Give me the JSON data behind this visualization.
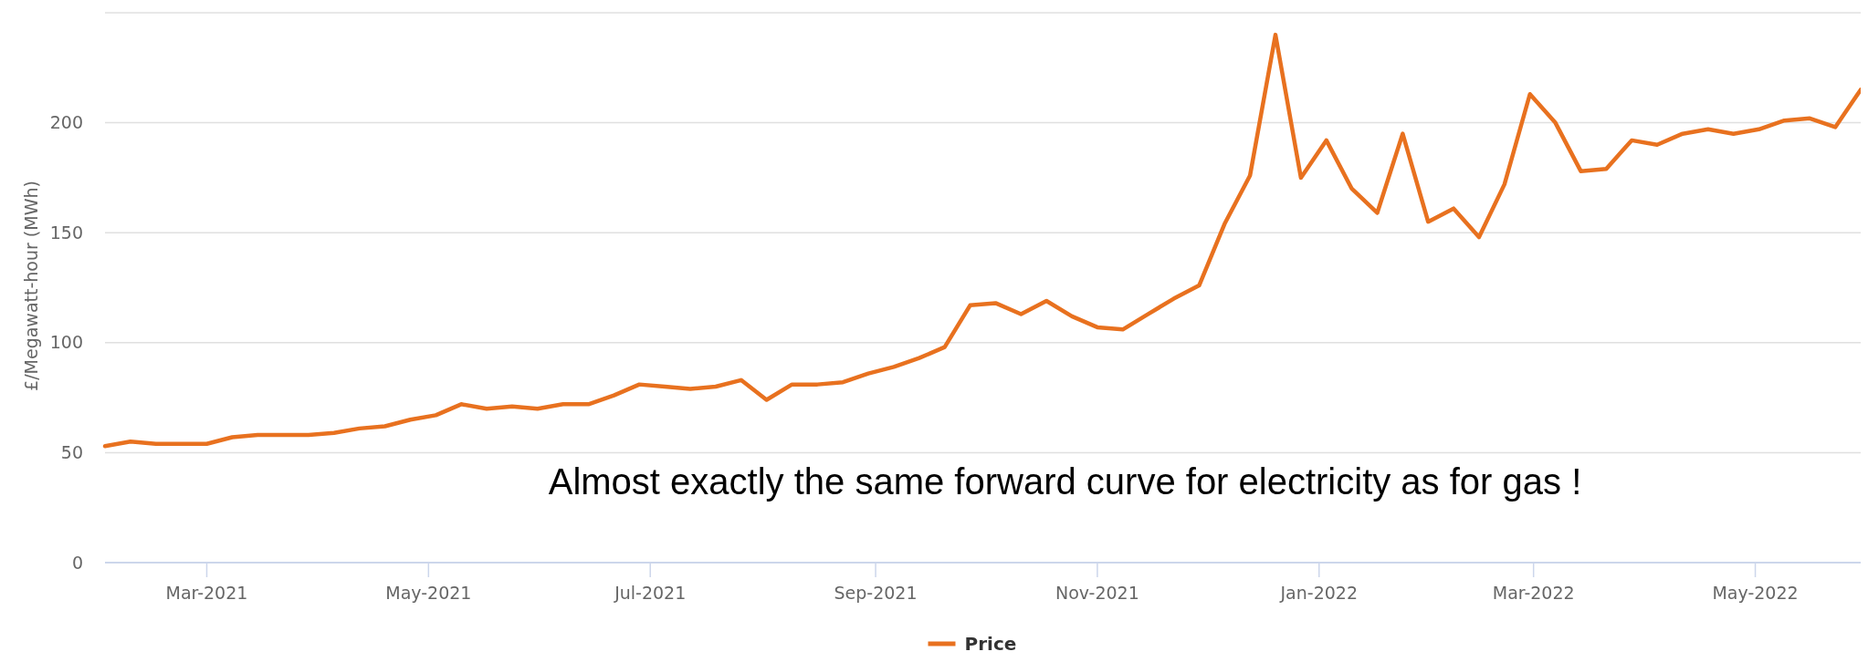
{
  "chart_data": {
    "type": "line",
    "ylabel": "£/Megawatt-hour (MWh)",
    "annotations": [
      "Almost exactly the same forward curve for electricity as for gas !"
    ],
    "x": [
      "2021-02-01",
      "2021-02-08",
      "2021-02-15",
      "2021-02-22",
      "2021-03-01",
      "2021-03-08",
      "2021-03-15",
      "2021-03-22",
      "2021-03-29",
      "2021-04-05",
      "2021-04-12",
      "2021-04-19",
      "2021-04-26",
      "2021-05-03",
      "2021-05-10",
      "2021-05-17",
      "2021-05-24",
      "2021-05-31",
      "2021-06-07",
      "2021-06-14",
      "2021-06-21",
      "2021-06-28",
      "2021-07-05",
      "2021-07-12",
      "2021-07-19",
      "2021-07-26",
      "2021-08-02",
      "2021-08-09",
      "2021-08-16",
      "2021-08-23",
      "2021-08-30",
      "2021-09-06",
      "2021-09-13",
      "2021-09-20",
      "2021-09-27",
      "2021-10-04",
      "2021-10-11",
      "2021-10-18",
      "2021-10-25",
      "2021-11-01",
      "2021-11-08",
      "2021-11-15",
      "2021-11-22",
      "2021-11-29",
      "2021-12-06",
      "2021-12-13",
      "2021-12-20",
      "2021-12-27",
      "2022-01-03",
      "2022-01-10",
      "2022-01-17",
      "2022-01-24",
      "2022-01-31",
      "2022-02-07",
      "2022-02-14",
      "2022-02-21",
      "2022-02-28",
      "2022-03-07",
      "2022-03-14",
      "2022-03-21",
      "2022-03-28",
      "2022-04-04",
      "2022-04-11",
      "2022-04-18",
      "2022-04-25",
      "2022-05-02",
      "2022-05-09",
      "2022-05-16",
      "2022-05-23",
      "2022-05-30"
    ],
    "series": [
      {
        "name": "Price",
        "color": "#e8711f",
        "values": [
          53,
          55,
          54,
          54,
          54,
          57,
          58,
          58,
          58,
          59,
          61,
          62,
          65,
          67,
          72,
          70,
          71,
          70,
          72,
          72,
          76,
          81,
          80,
          79,
          80,
          83,
          74,
          81,
          81,
          82,
          86,
          89,
          93,
          98,
          117,
          118,
          113,
          119,
          112,
          107,
          106,
          113,
          120,
          126,
          154,
          176,
          240,
          175,
          192,
          170,
          159,
          195,
          155,
          161,
          148,
          172,
          213,
          200,
          178,
          179,
          192,
          190,
          195,
          197,
          195,
          197,
          201,
          202,
          198,
          215
        ]
      }
    ],
    "xlim": [
      "2021-02-01",
      "2022-05-30"
    ],
    "xticks": [
      {
        "value": "2021-03-01",
        "label": "Mar-2021"
      },
      {
        "value": "2021-05-01",
        "label": "May-2021"
      },
      {
        "value": "2021-07-01",
        "label": "Jul-2021"
      },
      {
        "value": "2021-09-01",
        "label": "Sep-2021"
      },
      {
        "value": "2021-11-01",
        "label": "Nov-2021"
      },
      {
        "value": "2022-01-01",
        "label": "Jan-2022"
      },
      {
        "value": "2022-03-01",
        "label": "Mar-2022"
      },
      {
        "value": "2022-05-01",
        "label": "May-2022"
      }
    ],
    "ylim": [
      0,
      250
    ],
    "yticks": [
      0,
      50,
      100,
      150,
      200,
      {
        "value": 250,
        "label": null
      }
    ],
    "grid": "y",
    "legend": "bottom",
    "marker": "none",
    "line_style": "solid"
  }
}
